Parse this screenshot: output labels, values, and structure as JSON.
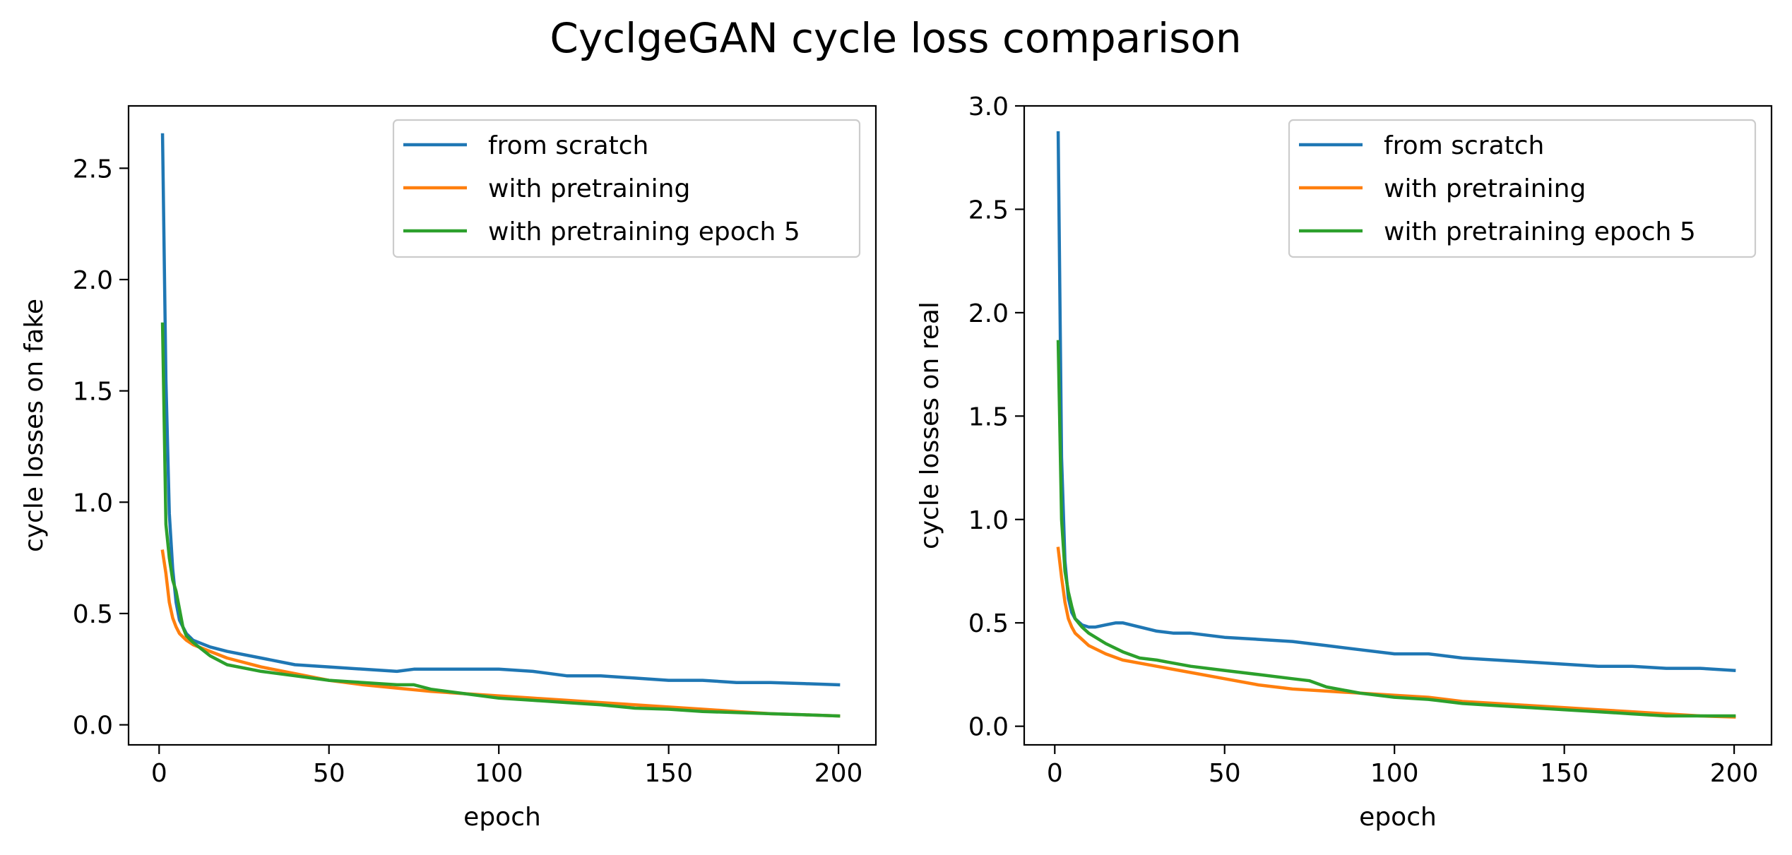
{
  "figure": {
    "title": "CyclgeGAN cycle loss comparison"
  },
  "colors": {
    "from_scratch": "#1f77b4",
    "with_pretraining": "#ff7f0e",
    "with_pretraining_epoch_5": "#2ca02c"
  },
  "chart_data": [
    {
      "type": "line",
      "xlabel": "epoch",
      "ylabel": "cycle losses on fake",
      "xlim": [
        -9,
        211
      ],
      "ylim": [
        -0.09,
        2.78
      ],
      "xticks": [
        0,
        50,
        100,
        150,
        200
      ],
      "xtick_labels": [
        "0",
        "50",
        "100",
        "150",
        "200"
      ],
      "yticks": [
        0,
        0.5,
        1.0,
        1.5,
        2.0,
        2.5
      ],
      "ytick_labels": [
        "0.0",
        "0.5",
        "1.0",
        "1.5",
        "2.0",
        "2.5"
      ],
      "legend_position": "upper right",
      "grid": false,
      "series": [
        {
          "name": "from scratch",
          "color": "#1f77b4",
          "x": [
            1,
            2,
            3,
            4,
            5,
            6,
            8,
            10,
            15,
            20,
            30,
            40,
            50,
            60,
            70,
            75,
            80,
            90,
            100,
            110,
            120,
            130,
            140,
            150,
            160,
            170,
            180,
            190,
            200
          ],
          "y": [
            2.65,
            1.55,
            0.95,
            0.7,
            0.55,
            0.47,
            0.41,
            0.38,
            0.35,
            0.33,
            0.3,
            0.27,
            0.26,
            0.25,
            0.24,
            0.25,
            0.25,
            0.25,
            0.25,
            0.24,
            0.22,
            0.22,
            0.21,
            0.2,
            0.2,
            0.19,
            0.19,
            0.185,
            0.18
          ]
        },
        {
          "name": "with pretraining",
          "color": "#ff7f0e",
          "x": [
            1,
            2,
            3,
            4,
            5,
            6,
            8,
            10,
            15,
            20,
            30,
            40,
            50,
            60,
            70,
            80,
            90,
            100,
            110,
            120,
            130,
            140,
            150,
            160,
            170,
            180,
            190,
            200
          ],
          "y": [
            0.78,
            0.68,
            0.55,
            0.48,
            0.44,
            0.41,
            0.38,
            0.36,
            0.33,
            0.3,
            0.26,
            0.23,
            0.2,
            0.18,
            0.165,
            0.15,
            0.14,
            0.13,
            0.12,
            0.11,
            0.1,
            0.09,
            0.08,
            0.07,
            0.06,
            0.05,
            0.045,
            0.04
          ]
        },
        {
          "name": "with pretraining epoch 5",
          "color": "#2ca02c",
          "x": [
            1,
            2,
            3,
            4,
            5,
            6,
            7,
            8,
            10,
            15,
            20,
            30,
            40,
            50,
            60,
            70,
            75,
            80,
            90,
            100,
            110,
            120,
            130,
            140,
            150,
            160,
            170,
            180,
            190,
            200
          ],
          "y": [
            1.8,
            0.9,
            0.75,
            0.65,
            0.6,
            0.52,
            0.44,
            0.4,
            0.37,
            0.31,
            0.27,
            0.24,
            0.22,
            0.2,
            0.19,
            0.18,
            0.18,
            0.16,
            0.14,
            0.12,
            0.11,
            0.1,
            0.09,
            0.075,
            0.07,
            0.06,
            0.055,
            0.05,
            0.045,
            0.04
          ]
        }
      ]
    },
    {
      "type": "line",
      "xlabel": "epoch",
      "ylabel": "cycle losses on real",
      "xlim": [
        -9,
        211
      ],
      "ylim": [
        -0.09,
        3.0
      ],
      "xticks": [
        0,
        50,
        100,
        150,
        200
      ],
      "xtick_labels": [
        "0",
        "50",
        "100",
        "150",
        "200"
      ],
      "yticks": [
        0,
        0.5,
        1.0,
        1.5,
        2.0,
        2.5,
        3.0
      ],
      "ytick_labels": [
        "0.0",
        "0.5",
        "1.0",
        "1.5",
        "2.0",
        "2.5",
        "3.0"
      ],
      "legend_position": "upper right",
      "grid": false,
      "series": [
        {
          "name": "from scratch",
          "color": "#1f77b4",
          "x": [
            1,
            2,
            3,
            4,
            5,
            6,
            8,
            10,
            12,
            15,
            18,
            20,
            25,
            30,
            35,
            40,
            50,
            60,
            70,
            80,
            90,
            100,
            110,
            120,
            130,
            140,
            150,
            160,
            170,
            180,
            190,
            200
          ],
          "y": [
            2.87,
            1.3,
            0.8,
            0.62,
            0.55,
            0.52,
            0.49,
            0.48,
            0.48,
            0.49,
            0.5,
            0.5,
            0.48,
            0.46,
            0.45,
            0.45,
            0.43,
            0.42,
            0.41,
            0.39,
            0.37,
            0.35,
            0.35,
            0.33,
            0.32,
            0.31,
            0.3,
            0.29,
            0.29,
            0.28,
            0.28,
            0.27
          ]
        },
        {
          "name": "with pretraining",
          "color": "#ff7f0e",
          "x": [
            1,
            2,
            3,
            4,
            5,
            6,
            8,
            10,
            15,
            20,
            30,
            40,
            50,
            60,
            70,
            80,
            90,
            100,
            110,
            120,
            130,
            140,
            150,
            160,
            170,
            180,
            190,
            200
          ],
          "y": [
            0.86,
            0.72,
            0.6,
            0.52,
            0.48,
            0.45,
            0.42,
            0.39,
            0.35,
            0.32,
            0.29,
            0.26,
            0.23,
            0.2,
            0.18,
            0.17,
            0.16,
            0.15,
            0.14,
            0.12,
            0.11,
            0.1,
            0.09,
            0.08,
            0.07,
            0.06,
            0.05,
            0.045
          ]
        },
        {
          "name": "with pretraining epoch 5",
          "color": "#2ca02c",
          "x": [
            1,
            2,
            3,
            4,
            5,
            6,
            7,
            8,
            10,
            15,
            20,
            25,
            30,
            40,
            50,
            60,
            70,
            75,
            80,
            90,
            100,
            110,
            120,
            130,
            140,
            150,
            160,
            170,
            180,
            190,
            200
          ],
          "y": [
            1.86,
            1.0,
            0.75,
            0.65,
            0.58,
            0.52,
            0.5,
            0.48,
            0.45,
            0.4,
            0.36,
            0.33,
            0.32,
            0.29,
            0.27,
            0.25,
            0.23,
            0.22,
            0.19,
            0.16,
            0.14,
            0.13,
            0.11,
            0.1,
            0.09,
            0.08,
            0.07,
            0.06,
            0.05,
            0.05,
            0.05
          ]
        }
      ]
    }
  ]
}
